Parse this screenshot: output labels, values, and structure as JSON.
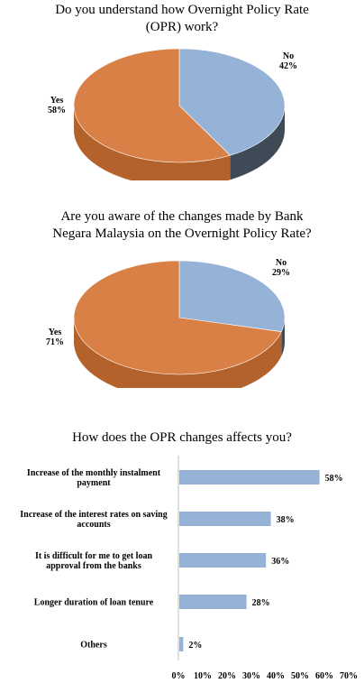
{
  "chart_data": [
    {
      "type": "pie",
      "title_lines": [
        "Do you understand how Overnight Policy Rate",
        "(OPR) work?"
      ],
      "slices": [
        {
          "label": "No",
          "value": 42,
          "value_label": "42%",
          "color": "#95b3d7",
          "side_color": "#3f4a57"
        },
        {
          "label": "Yes",
          "value": 58,
          "value_label": "58%",
          "color": "#d98046",
          "side_color": "#b4622c"
        }
      ]
    },
    {
      "type": "pie",
      "title_lines": [
        "Are you aware of the changes made by Bank",
        "Negara Malaysia on the Overnight Policy Rate?"
      ],
      "slices": [
        {
          "label": "No",
          "value": 29,
          "value_label": "29%",
          "color": "#95b3d7",
          "side_color": "#3f4a57"
        },
        {
          "label": "Yes",
          "value": 71,
          "value_label": "71%",
          "color": "#d98046",
          "side_color": "#b4622c"
        }
      ]
    },
    {
      "type": "bar",
      "orientation": "horizontal",
      "title": "How does the OPR changes affects you?",
      "categories": [
        [
          "Increase of the monthly instalment",
          "payment"
        ],
        [
          "Increase of the interest rates on saving",
          "accounts"
        ],
        [
          "It is difficult for me to get loan",
          "approval from the banks"
        ],
        [
          "Longer duration of loan tenure"
        ],
        [
          "Others"
        ]
      ],
      "values": [
        58,
        38,
        36,
        28,
        2
      ],
      "value_labels": [
        "58%",
        "38%",
        "36%",
        "28%",
        "2%"
      ],
      "xlim": [
        0,
        70
      ],
      "xticks": [
        "0%",
        "10%",
        "20%",
        "30%",
        "40%",
        "50%",
        "60%",
        "70%"
      ],
      "bar_color": "#95b3d7",
      "grid": false
    }
  ]
}
